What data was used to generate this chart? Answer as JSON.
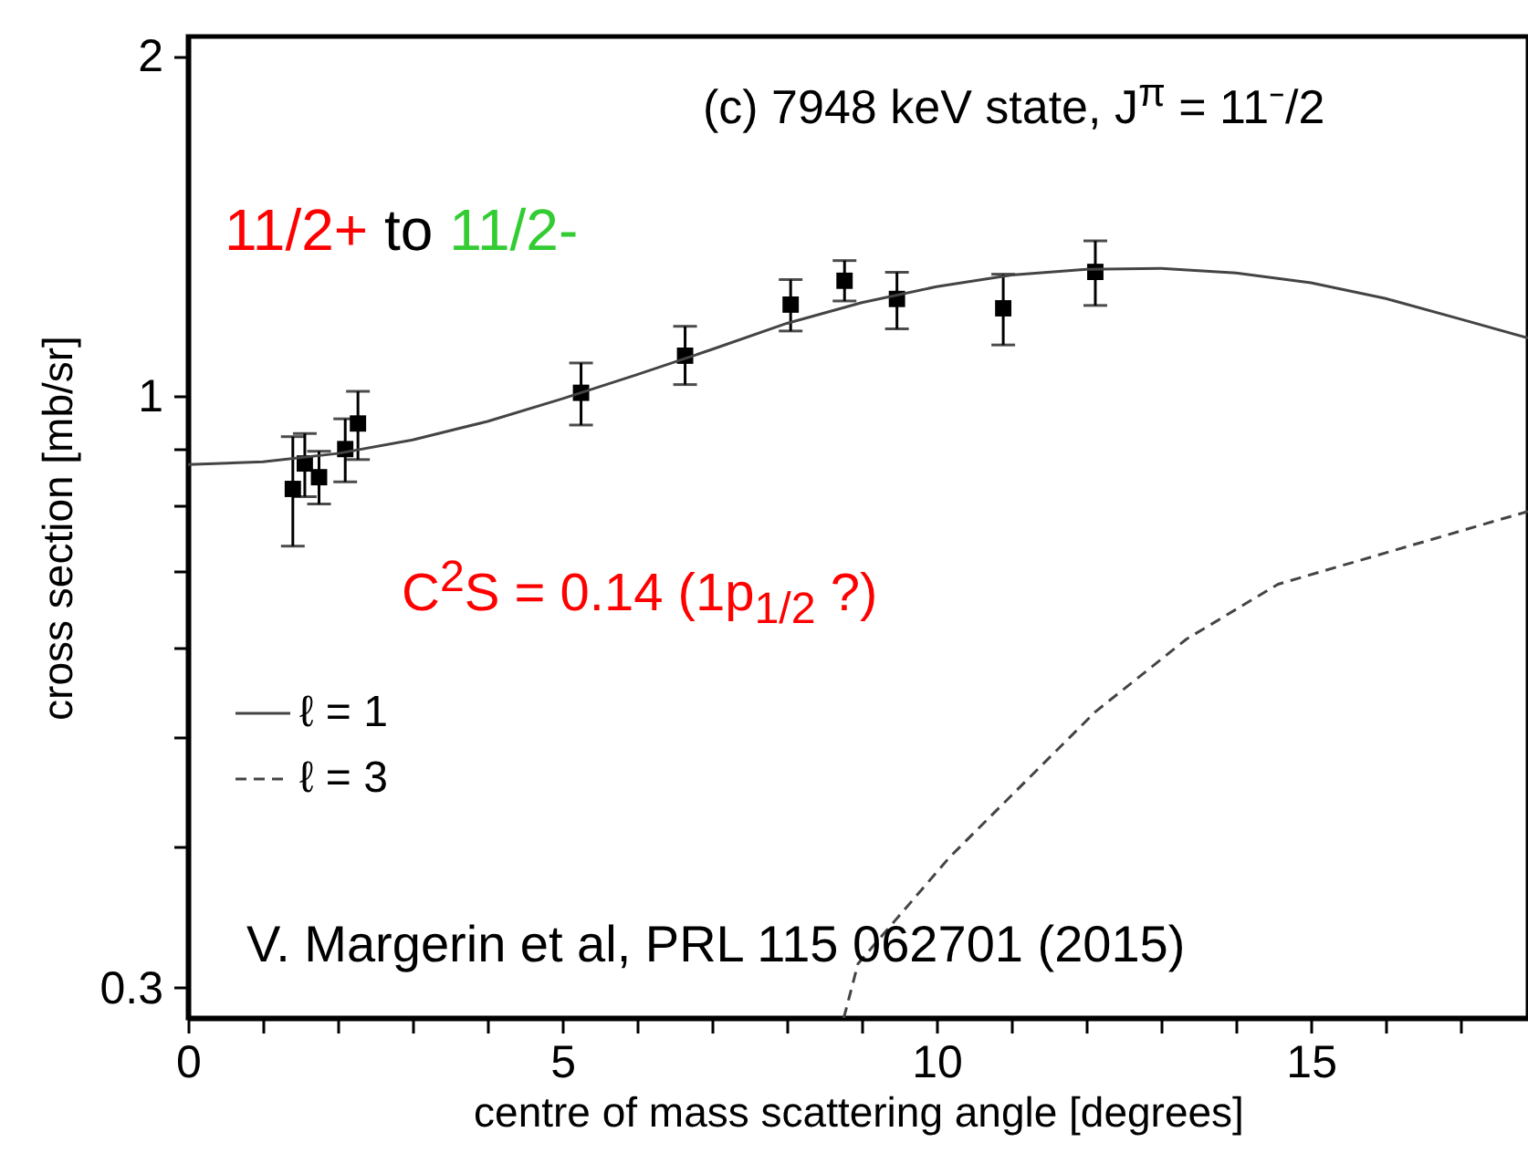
{
  "chart_data": {
    "type": "scatter",
    "xlabel": "centre of mass scattering angle [degrees]",
    "ylabel": "cross section [mb/sr]",
    "annotations": [
      "(c) 7948 keV state, J$^{π}$ = 11⁻/2",
      "11/2+ to 11/2-",
      "C$^{2}$S = 0.14  (1p$_{1/2}$ ?)",
      "V. Margerin et al, PRL 115 062701 (2015)"
    ],
    "xlim": [
      0,
      17.9
    ],
    "ylim": [
      0.282,
      2.08
    ],
    "log": "y",
    "legend": "left",
    "marker": "square",
    "grid": false,
    "xticks": [
      0,
      {
        "value": 1,
        "label": null
      },
      {
        "value": 2,
        "label": null
      },
      {
        "value": 3,
        "label": null
      },
      {
        "value": 4,
        "label": null
      },
      5,
      {
        "value": 6,
        "label": null
      },
      {
        "value": 7,
        "label": null
      },
      {
        "value": 8,
        "label": null
      },
      {
        "value": 9,
        "label": null
      },
      10,
      {
        "value": 11,
        "label": null
      },
      {
        "value": 12,
        "label": null
      },
      {
        "value": 13,
        "label": null
      },
      {
        "value": 14,
        "label": null
      },
      15,
      {
        "value": 16,
        "label": null
      },
      {
        "value": 17,
        "label": null
      }
    ],
    "yticks": [
      0.3,
      {
        "value": 0.4,
        "label": null
      },
      {
        "value": 0.5,
        "label": null
      },
      {
        "value": 0.6,
        "label": null
      },
      {
        "value": 0.7,
        "label": null
      },
      {
        "value": 0.8,
        "label": null
      },
      {
        "value": 0.9,
        "label": null
      },
      1,
      2
    ],
    "series": [
      {
        "color": "#000000",
        "x": [
          1.4,
          1.56,
          1.75,
          2.1,
          2.27,
          5.25,
          6.64,
          8.05,
          8.77,
          9.47,
          10.89,
          12.12
        ],
        "values": [
          0.828,
          0.872,
          0.848,
          0.898,
          0.946,
          1.007,
          1.086,
          1.205,
          1.265,
          1.219,
          1.196,
          1.288
        ],
        "errors": [
          [
            0.737,
            0.921
          ],
          [
            0.815,
            0.927
          ],
          [
            0.803,
            0.894
          ],
          [
            0.84,
            0.955
          ],
          [
            0.879,
            1.01
          ],
          [
            0.943,
            1.07
          ],
          [
            1.024,
            1.153
          ],
          [
            1.142,
            1.268
          ],
          [
            1.214,
            1.318
          ],
          [
            1.147,
            1.287
          ],
          [
            1.11,
            1.282
          ],
          [
            1.203,
            1.372
          ]
        ]
      },
      {
        "type": "line",
        "name": "ℓ = 1",
        "color": "#444444",
        "line_style": "solid",
        "marker": "none",
        "x": [
          0,
          1,
          2,
          3,
          4,
          5,
          6,
          7,
          8,
          9,
          10,
          11,
          12,
          13,
          14,
          15,
          16,
          17,
          17.9
        ],
        "values": [
          0.87,
          0.875,
          0.89,
          0.915,
          0.95,
          0.995,
          1.045,
          1.1,
          1.16,
          1.21,
          1.25,
          1.28,
          1.295,
          1.297,
          1.285,
          1.26,
          1.22,
          1.17,
          1.126
        ]
      },
      {
        "type": "line",
        "name": "ℓ = 3",
        "color": "#444444",
        "line_style": "dashed",
        "marker": "none",
        "x": [
          8.76,
          8.95,
          10.17,
          12.12,
          13.34,
          14.56,
          17.9
        ],
        "values": [
          0.282,
          0.315,
          0.391,
          0.526,
          0.61,
          0.682,
          0.791
        ]
      }
    ]
  }
}
